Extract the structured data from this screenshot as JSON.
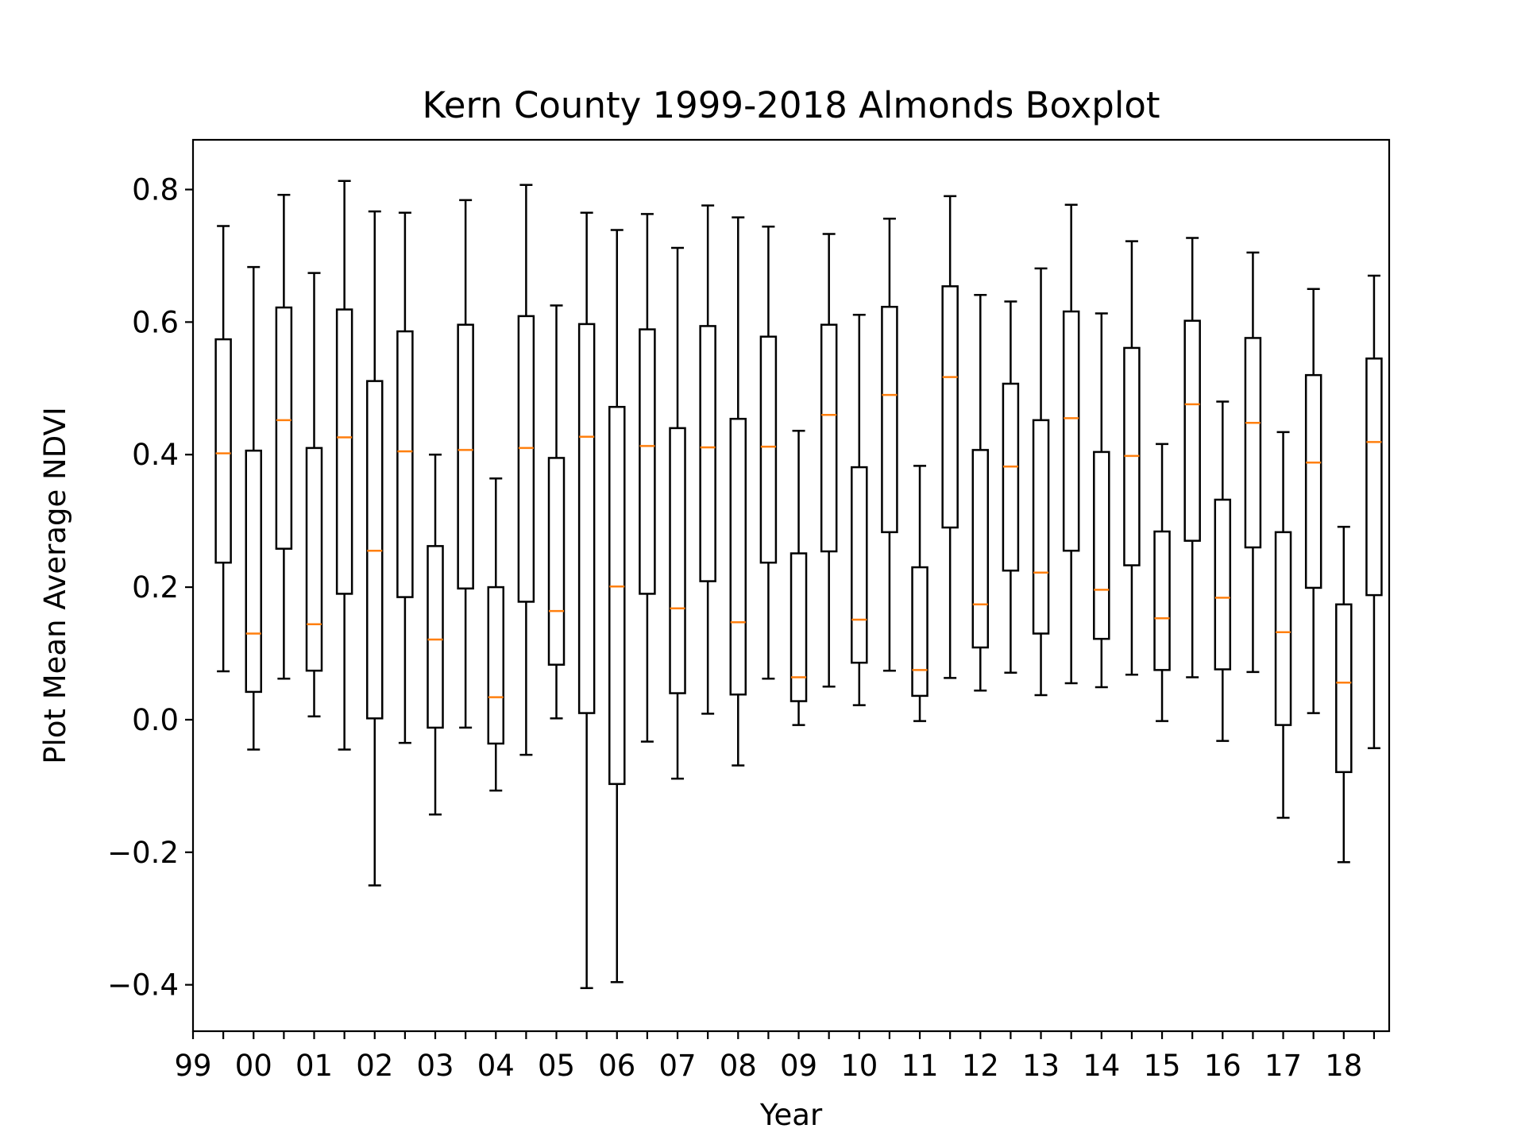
{
  "chart_data": {
    "type": "boxplot",
    "title": "Kern County 1999-2018 Almonds Boxplot",
    "xlabel": "Year",
    "ylabel": "Plot Mean Average NDVI",
    "ylim": [
      -0.47,
      0.875
    ],
    "yticks": [
      -0.4,
      -0.2,
      0.0,
      0.2,
      0.4,
      0.6,
      0.8
    ],
    "ytick_labels": [
      "−0.4",
      "−0.2",
      "0.0",
      "0.2",
      "0.4",
      "0.6",
      "0.8"
    ],
    "xtick_labels": [
      "99",
      "00",
      "01",
      "02",
      "03",
      "04",
      "05",
      "06",
      "07",
      "08",
      "09",
      "10",
      "11",
      "12",
      "13",
      "14",
      "15",
      "16",
      "17",
      "18"
    ],
    "colors": {
      "box": "#000000",
      "median": "#ff7f0e"
    },
    "boxes": [
      {
        "min": 0.073,
        "q1": 0.237,
        "median": 0.402,
        "q3": 0.574,
        "max": 0.745
      },
      {
        "min": -0.045,
        "q1": 0.042,
        "median": 0.13,
        "q3": 0.406,
        "max": 0.683
      },
      {
        "min": 0.062,
        "q1": 0.258,
        "median": 0.452,
        "q3": 0.622,
        "max": 0.792
      },
      {
        "min": 0.005,
        "q1": 0.074,
        "median": 0.144,
        "q3": 0.41,
        "max": 0.674
      },
      {
        "min": -0.045,
        "q1": 0.19,
        "median": 0.426,
        "q3": 0.619,
        "max": 0.813
      },
      {
        "min": -0.25,
        "q1": 0.002,
        "median": 0.255,
        "q3": 0.511,
        "max": 0.767
      },
      {
        "min": -0.035,
        "q1": 0.185,
        "median": 0.405,
        "q3": 0.586,
        "max": 0.765
      },
      {
        "min": -0.143,
        "q1": -0.012,
        "median": 0.121,
        "q3": 0.262,
        "max": 0.4
      },
      {
        "min": -0.012,
        "q1": 0.198,
        "median": 0.407,
        "q3": 0.596,
        "max": 0.784
      },
      {
        "min": -0.107,
        "q1": -0.036,
        "median": 0.034,
        "q3": 0.2,
        "max": 0.364
      },
      {
        "min": -0.053,
        "q1": 0.178,
        "median": 0.41,
        "q3": 0.609,
        "max": 0.807
      },
      {
        "min": 0.002,
        "q1": 0.083,
        "median": 0.164,
        "q3": 0.395,
        "max": 0.625
      },
      {
        "min": -0.405,
        "q1": 0.01,
        "median": 0.427,
        "q3": 0.597,
        "max": 0.765
      },
      {
        "min": -0.396,
        "q1": -0.097,
        "median": 0.201,
        "q3": 0.472,
        "max": 0.739
      },
      {
        "min": -0.033,
        "q1": 0.19,
        "median": 0.413,
        "q3": 0.589,
        "max": 0.763
      },
      {
        "min": -0.089,
        "q1": 0.04,
        "median": 0.168,
        "q3": 0.44,
        "max": 0.712
      },
      {
        "min": 0.009,
        "q1": 0.209,
        "median": 0.411,
        "q3": 0.594,
        "max": 0.776
      },
      {
        "min": -0.069,
        "q1": 0.038,
        "median": 0.147,
        "q3": 0.454,
        "max": 0.758
      },
      {
        "min": 0.062,
        "q1": 0.237,
        "median": 0.412,
        "q3": 0.578,
        "max": 0.744
      },
      {
        "min": -0.008,
        "q1": 0.028,
        "median": 0.064,
        "q3": 0.251,
        "max": 0.436
      },
      {
        "min": 0.05,
        "q1": 0.254,
        "median": 0.46,
        "q3": 0.596,
        "max": 0.733
      },
      {
        "min": 0.022,
        "q1": 0.086,
        "median": 0.151,
        "q3": 0.381,
        "max": 0.611
      },
      {
        "min": 0.074,
        "q1": 0.283,
        "median": 0.49,
        "q3": 0.623,
        "max": 0.756
      },
      {
        "min": -0.002,
        "q1": 0.036,
        "median": 0.075,
        "q3": 0.23,
        "max": 0.383
      },
      {
        "min": 0.063,
        "q1": 0.29,
        "median": 0.517,
        "q3": 0.654,
        "max": 0.79
      },
      {
        "min": 0.044,
        "q1": 0.109,
        "median": 0.174,
        "q3": 0.407,
        "max": 0.641
      },
      {
        "min": 0.071,
        "q1": 0.225,
        "median": 0.382,
        "q3": 0.507,
        "max": 0.631
      },
      {
        "min": 0.037,
        "q1": 0.13,
        "median": 0.222,
        "q3": 0.452,
        "max": 0.681
      },
      {
        "min": 0.055,
        "q1": 0.255,
        "median": 0.455,
        "q3": 0.616,
        "max": 0.777
      },
      {
        "min": 0.049,
        "q1": 0.122,
        "median": 0.196,
        "q3": 0.404,
        "max": 0.613
      },
      {
        "min": 0.068,
        "q1": 0.233,
        "median": 0.398,
        "q3": 0.561,
        "max": 0.722
      },
      {
        "min": -0.002,
        "q1": 0.075,
        "median": 0.153,
        "q3": 0.284,
        "max": 0.416
      },
      {
        "min": 0.064,
        "q1": 0.27,
        "median": 0.476,
        "q3": 0.602,
        "max": 0.727
      },
      {
        "min": -0.032,
        "q1": 0.076,
        "median": 0.184,
        "q3": 0.332,
        "max": 0.48
      },
      {
        "min": 0.072,
        "q1": 0.26,
        "median": 0.448,
        "q3": 0.576,
        "max": 0.705
      },
      {
        "min": -0.148,
        "q1": -0.008,
        "median": 0.132,
        "q3": 0.283,
        "max": 0.434
      },
      {
        "min": 0.01,
        "q1": 0.199,
        "median": 0.388,
        "q3": 0.52,
        "max": 0.65
      },
      {
        "min": -0.215,
        "q1": -0.079,
        "median": 0.056,
        "q3": 0.174,
        "max": 0.291
      },
      {
        "min": -0.043,
        "q1": 0.188,
        "median": 0.419,
        "q3": 0.545,
        "max": 0.67
      }
    ]
  }
}
